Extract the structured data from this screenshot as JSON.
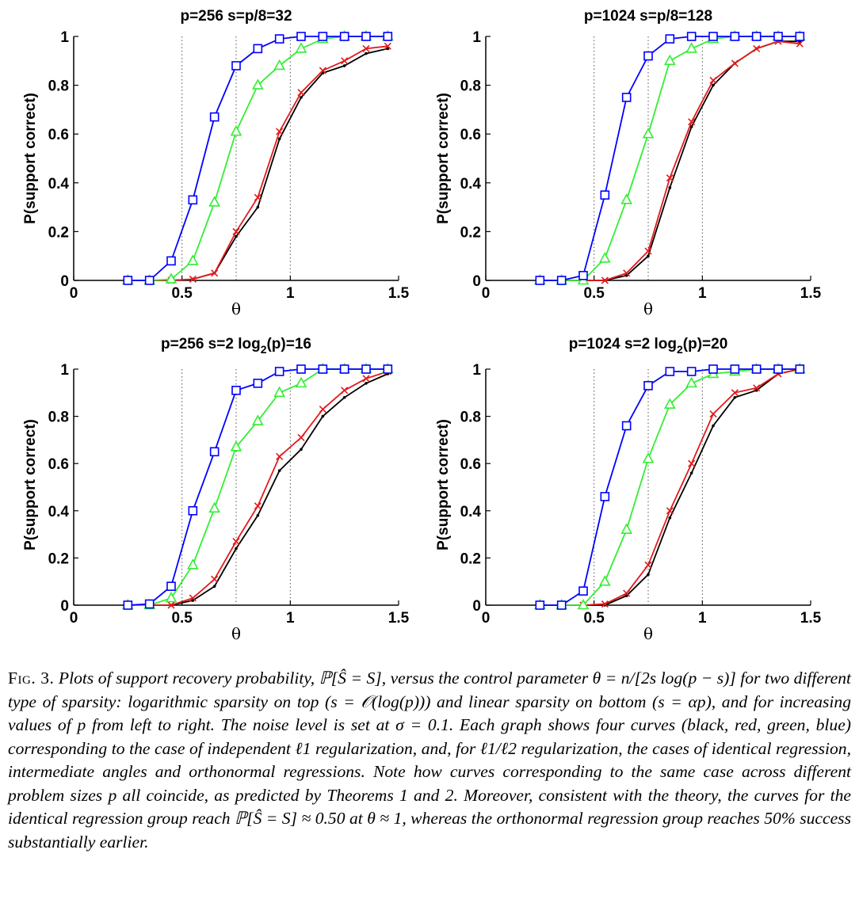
{
  "figure": {
    "panels": [
      {
        "title": "p=256  s=p/8=32",
        "title_sub": "",
        "title_tail": "",
        "ylabel": "P(support correct)",
        "xlabel": "θ",
        "x_ticks": [
          "0",
          "0.5",
          "1",
          "1.5"
        ],
        "y_ticks": [
          "0",
          "0.2",
          "0.4",
          "0.6",
          "0.8",
          "1"
        ]
      },
      {
        "title": "p=1024  s=p/8=128",
        "title_sub": "",
        "title_tail": "",
        "ylabel": "P(support correct)",
        "xlabel": "θ",
        "x_ticks": [
          "0",
          "0.5",
          "1",
          "1.5"
        ],
        "y_ticks": [
          "0",
          "0.2",
          "0.4",
          "0.6",
          "0.8",
          "1"
        ]
      },
      {
        "title": "p=256  s=2 log",
        "title_sub": "2",
        "title_tail": "(p)=16",
        "ylabel": "P(support correct)",
        "xlabel": "θ",
        "x_ticks": [
          "0",
          "0.5",
          "1",
          "1.5"
        ],
        "y_ticks": [
          "0",
          "0.2",
          "0.4",
          "0.6",
          "0.8",
          "1"
        ]
      },
      {
        "title": "p=1024  s=2 log",
        "title_sub": "2",
        "title_tail": "(p)=20",
        "ylabel": "P(support correct)",
        "xlabel": "θ",
        "x_ticks": [
          "0",
          "0.5",
          "1",
          "1.5"
        ],
        "y_ticks": [
          "0",
          "0.2",
          "0.4",
          "0.6",
          "0.8",
          "1"
        ]
      }
    ],
    "caption": {
      "label": "Fig. 3.",
      "text": "Plots of support recovery probability, ℙ[Ŝ = S], versus the control parameter θ = n/[2s log(p − s)] for two different type of sparsity: logarithmic sparsity on top (s = 𝒪(log(p))) and linear sparsity on bottom (s = αp), and for increasing values of p from left to right. The noise level is set at σ = 0.1. Each graph shows four curves (black, red, green, blue) corresponding to the case of independent ℓ1 regularization, and, for ℓ1/ℓ2 regularization, the cases of identical regression, intermediate angles and orthonormal regressions. Note how curves corresponding to the same case across different problem sizes p all coincide, as predicted by Theorems 1 and 2. Moreover, consistent with the theory, the curves for the identical regression group reach ℙ[Ŝ = S] ≈ 0.50 at θ ≈ 1, whereas the orthonormal regression group reaches 50% success substantially earlier."
    }
  },
  "chart_data": [
    {
      "type": "line",
      "title": "p=256  s=p/8=32",
      "xlabel": "θ",
      "ylabel": "P(support correct)",
      "xlim": [
        0,
        1.5
      ],
      "ylim": [
        0,
        1
      ],
      "reference_lines_x": [
        0.5,
        0.75,
        1.0
      ],
      "x": [
        0.25,
        0.35,
        0.45,
        0.55,
        0.65,
        0.75,
        0.85,
        0.95,
        1.05,
        1.15,
        1.25,
        1.35,
        1.45
      ],
      "series": [
        {
          "color": "#000000",
          "marker": "dot",
          "values": [
            0,
            0,
            0,
            0.005,
            0.03,
            0.18,
            0.3,
            0.58,
            0.75,
            0.85,
            0.88,
            0.93,
            0.95
          ]
        },
        {
          "color": "#e31a1c",
          "marker": "x",
          "values": [
            0,
            0,
            0,
            0.005,
            0.03,
            0.2,
            0.34,
            0.61,
            0.77,
            0.86,
            0.9,
            0.95,
            0.96
          ]
        },
        {
          "color": "#33ee33",
          "marker": "triangle",
          "values": [
            0,
            0,
            0.005,
            0.08,
            0.32,
            0.61,
            0.8,
            0.88,
            0.95,
            0.99,
            1.0,
            1.0,
            1.0
          ]
        },
        {
          "color": "#0000ff",
          "marker": "square",
          "values": [
            0,
            0,
            0.08,
            0.33,
            0.67,
            0.88,
            0.95,
            0.99,
            1.0,
            1.0,
            1.0,
            1.0,
            1.0
          ]
        }
      ]
    },
    {
      "type": "line",
      "title": "p=1024  s=p/8=128",
      "xlabel": "θ",
      "ylabel": "P(support correct)",
      "xlim": [
        0,
        1.5
      ],
      "ylim": [
        0,
        1
      ],
      "reference_lines_x": [
        0.5,
        0.75,
        1.0
      ],
      "x": [
        0.25,
        0.35,
        0.45,
        0.55,
        0.65,
        0.75,
        0.85,
        0.95,
        1.05,
        1.15,
        1.25,
        1.35,
        1.45
      ],
      "series": [
        {
          "color": "#000000",
          "marker": "dot",
          "values": [
            0,
            0,
            0,
            0,
            0.02,
            0.1,
            0.38,
            0.63,
            0.8,
            0.89,
            0.95,
            0.98,
            0.98
          ]
        },
        {
          "color": "#e31a1c",
          "marker": "x",
          "values": [
            0,
            0,
            0,
            0,
            0.03,
            0.12,
            0.42,
            0.65,
            0.82,
            0.89,
            0.95,
            0.98,
            0.97
          ]
        },
        {
          "color": "#33ee33",
          "marker": "triangle",
          "values": [
            0,
            0,
            0,
            0.09,
            0.33,
            0.6,
            0.9,
            0.95,
            0.99,
            1.0,
            1.0,
            1.0,
            1.0
          ]
        },
        {
          "color": "#0000ff",
          "marker": "square",
          "values": [
            0,
            0,
            0.02,
            0.35,
            0.75,
            0.92,
            0.99,
            1.0,
            1.0,
            1.0,
            1.0,
            1.0,
            1.0
          ]
        }
      ]
    },
    {
      "type": "line",
      "title": "p=256  s=2 log2(p)=16",
      "xlabel": "θ",
      "ylabel": "P(support correct)",
      "xlim": [
        0,
        1.5
      ],
      "ylim": [
        0,
        1
      ],
      "reference_lines_x": [
        0.5,
        0.75,
        1.0
      ],
      "x": [
        0.25,
        0.35,
        0.45,
        0.55,
        0.65,
        0.75,
        0.85,
        0.95,
        1.05,
        1.15,
        1.25,
        1.35,
        1.45
      ],
      "series": [
        {
          "color": "#000000",
          "marker": "dot",
          "values": [
            0,
            0,
            0,
            0.02,
            0.08,
            0.24,
            0.38,
            0.57,
            0.66,
            0.8,
            0.88,
            0.94,
            0.98
          ]
        },
        {
          "color": "#e31a1c",
          "marker": "x",
          "values": [
            0,
            0,
            0,
            0.03,
            0.11,
            0.27,
            0.42,
            0.63,
            0.71,
            0.83,
            0.91,
            0.96,
            0.99
          ]
        },
        {
          "color": "#33ee33",
          "marker": "triangle",
          "values": [
            0,
            0,
            0.03,
            0.17,
            0.41,
            0.67,
            0.78,
            0.9,
            0.94,
            1.0,
            1.0,
            1.0,
            1.0
          ]
        },
        {
          "color": "#0000ff",
          "marker": "square",
          "values": [
            0,
            0.005,
            0.08,
            0.4,
            0.65,
            0.91,
            0.94,
            0.99,
            1.0,
            1.0,
            1.0,
            1.0,
            1.0
          ]
        }
      ]
    },
    {
      "type": "line",
      "title": "p=1024  s=2 log2(p)=20",
      "xlabel": "θ",
      "ylabel": "P(support correct)",
      "xlim": [
        0,
        1.5
      ],
      "ylim": [
        0,
        1
      ],
      "reference_lines_x": [
        0.5,
        0.75,
        1.0
      ],
      "x": [
        0.25,
        0.35,
        0.45,
        0.55,
        0.65,
        0.75,
        0.85,
        0.95,
        1.05,
        1.15,
        1.25,
        1.35,
        1.45
      ],
      "series": [
        {
          "color": "#000000",
          "marker": "dot",
          "values": [
            0,
            0,
            0,
            0,
            0.04,
            0.13,
            0.37,
            0.56,
            0.76,
            0.88,
            0.91,
            0.98,
            1.0
          ]
        },
        {
          "color": "#e31a1c",
          "marker": "x",
          "values": [
            0,
            0,
            0,
            0.005,
            0.05,
            0.17,
            0.4,
            0.6,
            0.81,
            0.9,
            0.92,
            0.98,
            1.0
          ]
        },
        {
          "color": "#33ee33",
          "marker": "triangle",
          "values": [
            0,
            0,
            0,
            0.1,
            0.32,
            0.62,
            0.85,
            0.94,
            0.98,
            0.99,
            1.0,
            1.0,
            1.0
          ]
        },
        {
          "color": "#0000ff",
          "marker": "square",
          "values": [
            0,
            0,
            0.06,
            0.46,
            0.76,
            0.93,
            0.99,
            0.99,
            1.0,
            1.0,
            1.0,
            1.0,
            1.0
          ]
        }
      ]
    }
  ]
}
